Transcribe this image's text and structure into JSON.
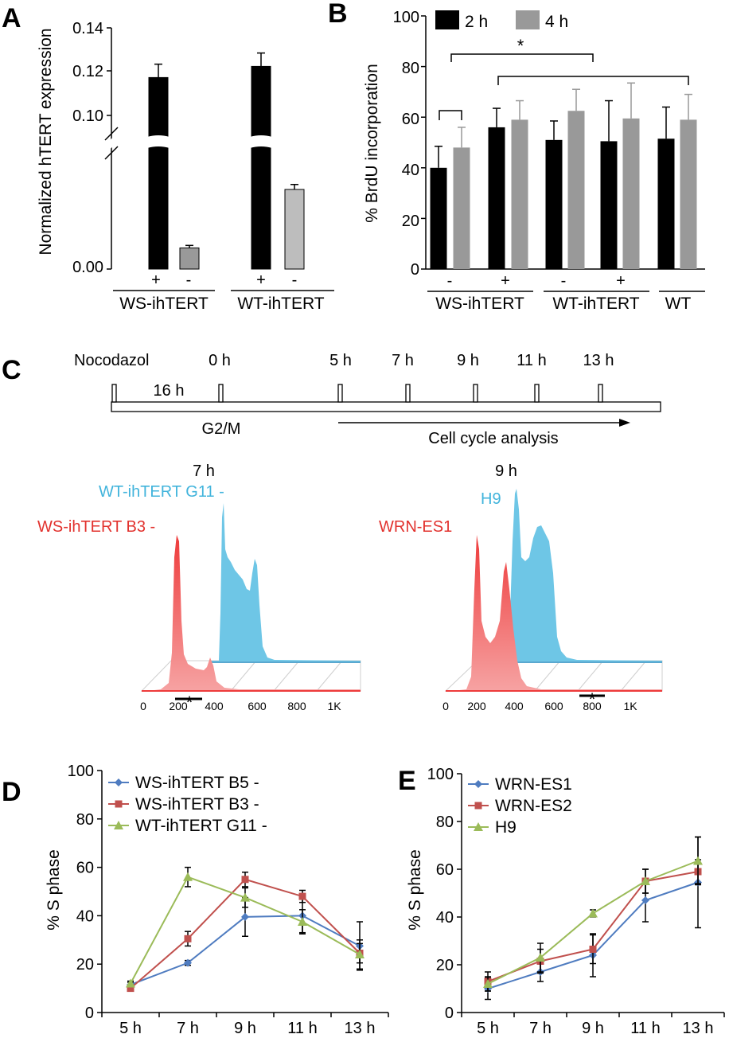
{
  "colors": {
    "black_bar": "#000000",
    "gray_bar": "#999999",
    "light_gray_bar": "#bdbdbd",
    "blue_series": "#4f7cc0",
    "red_series": "#c0504d",
    "green_series": "#9bbb59",
    "histogram_blue": "#6ec6e6",
    "histogram_red": "#ee3b3b",
    "label_blue": "#42b4dc",
    "label_red": "#e2322e"
  },
  "panel_labels": {
    "a": "A",
    "b": "B",
    "c": "C",
    "d": "D",
    "e": "E"
  },
  "chart_data": [
    {
      "panel": "A",
      "type": "bar",
      "ylabel": "Normalized hTERT expression",
      "yticks": [
        "0.00",
        "0.10",
        "0.12",
        "0.14"
      ],
      "axis_break": true,
      "categories": [
        "+",
        "-",
        "+",
        "-"
      ],
      "groups": [
        "WS-ihTERT",
        "WT-ihTERT"
      ],
      "values": [
        0.117,
        0.0085,
        0.122,
        0.032
      ],
      "errors": [
        0.006,
        0.001,
        0.006,
        0.002
      ],
      "bar_colors": [
        "#000000",
        "#999999",
        "#000000",
        "#bdbdbd"
      ]
    },
    {
      "panel": "B",
      "type": "bar",
      "ylabel": "% BrdU incorporation",
      "ylim": [
        0,
        100
      ],
      "yticks": [
        "0",
        "20",
        "40",
        "60",
        "80",
        "100"
      ],
      "legend": [
        "2 h",
        "4 h"
      ],
      "legend_position": "top-left",
      "categories": [
        "-",
        "+",
        "-",
        "+",
        ""
      ],
      "groups": [
        "WS-ihTERT",
        "WT-ihTERT",
        "WT"
      ],
      "series": [
        {
          "name": "2 h",
          "values": [
            40,
            56,
            51,
            50.5,
            51.5
          ],
          "errors": [
            8.5,
            7.5,
            7.5,
            16,
            12.5
          ]
        },
        {
          "name": "4 h",
          "values": [
            48,
            59,
            62.5,
            59.5,
            59
          ],
          "errors": [
            8,
            7.5,
            8.5,
            14,
            10
          ]
        }
      ],
      "significance": "*"
    },
    {
      "panel": "C",
      "type": "other",
      "timeline": {
        "labels": [
          "Nocodazol",
          "0 h",
          "5 h",
          "7 h",
          "9 h",
          "11 h",
          "13 h"
        ],
        "interval_label": "16 h",
        "phase_label": "G2/M",
        "analysis_label": "Cell cycle analysis"
      },
      "histograms": [
        {
          "title": "7 h",
          "blue_label": "WT-ihTERT G11 -",
          "red_label": "WS-ihTERT B3 -"
        },
        {
          "title": "9 h",
          "blue_label": "H9",
          "red_label": "WRN-ES1"
        }
      ],
      "xticks": [
        "0",
        "200",
        "400",
        "600",
        "800",
        "1K"
      ]
    },
    {
      "panel": "D",
      "type": "line",
      "ylabel": "% S phase",
      "ylim": [
        0,
        100
      ],
      "yticks": [
        "0",
        "20",
        "40",
        "60",
        "80",
        "100"
      ],
      "x": [
        "5 h",
        "7 h",
        "9 h",
        "11 h",
        "13 h"
      ],
      "legend_position": "top-left",
      "series": [
        {
          "name": "WS-ihTERT B5 -",
          "values": [
            11.5,
            20.5,
            39.5,
            40,
            27.5
          ],
          "errors": [
            1,
            1,
            8,
            7,
            10
          ]
        },
        {
          "name": "WS-ihTERT B3 -",
          "values": [
            10,
            30.5,
            55,
            48,
            24.5
          ],
          "errors": [
            1,
            3,
            3,
            2.5,
            4
          ]
        },
        {
          "name": "WT-ihTERT G11 -",
          "values": [
            12,
            56,
            47.5,
            37.5,
            24
          ],
          "errors": [
            1,
            4,
            4,
            5,
            6
          ]
        }
      ],
      "significance": "*"
    },
    {
      "panel": "E",
      "type": "line",
      "ylabel": "% S phase",
      "ylim": [
        0,
        100
      ],
      "yticks": [
        "0",
        "20",
        "40",
        "60",
        "80",
        "100"
      ],
      "x": [
        "5 h",
        "7 h",
        "9 h",
        "11 h",
        "13 h"
      ],
      "legend_position": "top-left",
      "series": [
        {
          "name": "WRN-ES1",
          "values": [
            10,
            17,
            24,
            47,
            54.5
          ],
          "errors": [
            4.5,
            4,
            9,
            9,
            19
          ]
        },
        {
          "name": "WRN-ES2",
          "values": [
            13,
            21.5,
            26.5,
            55,
            59
          ],
          "errors": [
            4,
            5,
            6,
            5,
            5
          ]
        },
        {
          "name": "H9",
          "values": [
            12,
            23,
            41.5,
            55,
            63.5
          ],
          "errors": [
            3,
            6,
            1.5,
            5,
            10
          ]
        }
      ],
      "significance": "*"
    }
  ]
}
